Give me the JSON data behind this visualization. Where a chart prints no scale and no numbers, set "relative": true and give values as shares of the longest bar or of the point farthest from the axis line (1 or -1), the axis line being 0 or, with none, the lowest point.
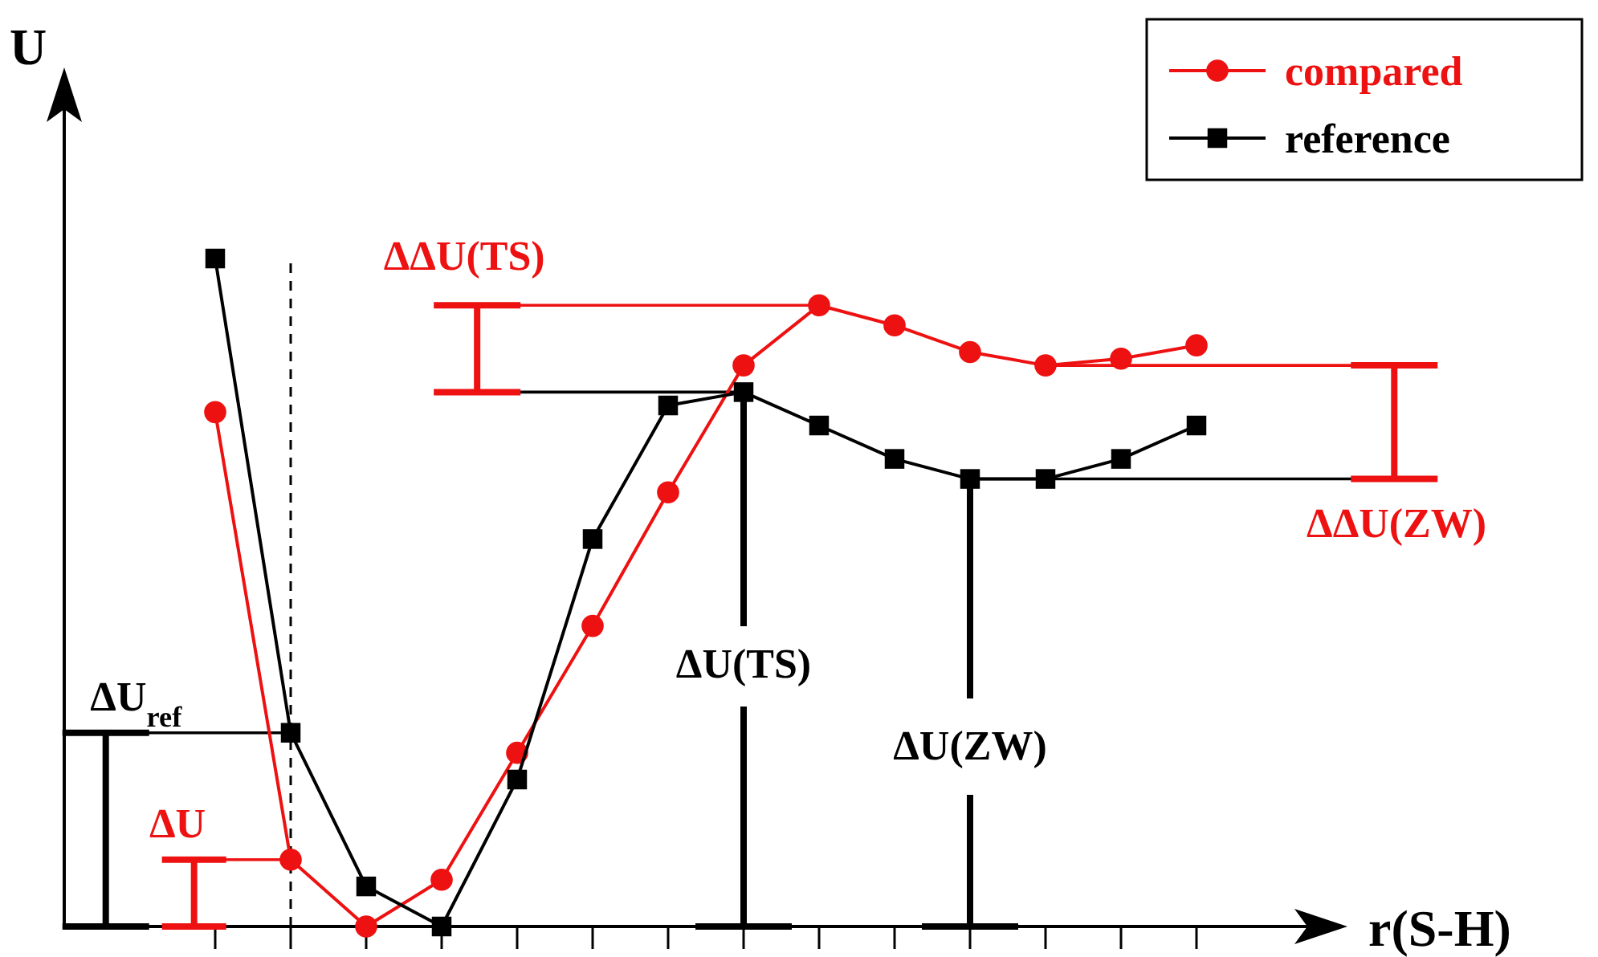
{
  "chart_data": {
    "type": "line",
    "relative": true,
    "xlabel": "r(S-H)",
    "ylabel": "U",
    "categories": [
      null,
      null,
      null,
      null,
      null,
      null,
      null,
      null,
      null,
      null,
      null,
      null,
      null,
      null
    ],
    "series": [
      {
        "name": "compared",
        "color": "#ee1111",
        "marker": "circle",
        "values": [
          0.77,
          0.1,
          0,
          0.07,
          0.26,
          0.45,
          0.65,
          0.84,
          0.93,
          0.9,
          0.86,
          0.84,
          0.85,
          0.87
        ]
      },
      {
        "name": "reference",
        "color": "#000000",
        "marker": "square",
        "values": [
          1,
          0.29,
          0.06,
          0,
          0.22,
          0.58,
          0.78,
          0.8,
          0.75,
          0.7,
          0.67,
          0.67,
          0.7,
          0.75
        ]
      }
    ],
    "annotations": [
      "ΔΔU(TS)",
      "ΔΔU(ZW)",
      "ΔU(TS)",
      "ΔU(ZW)",
      "ΔU$_{ref}$",
      "ΔU"
    ],
    "legend": "top right"
  }
}
